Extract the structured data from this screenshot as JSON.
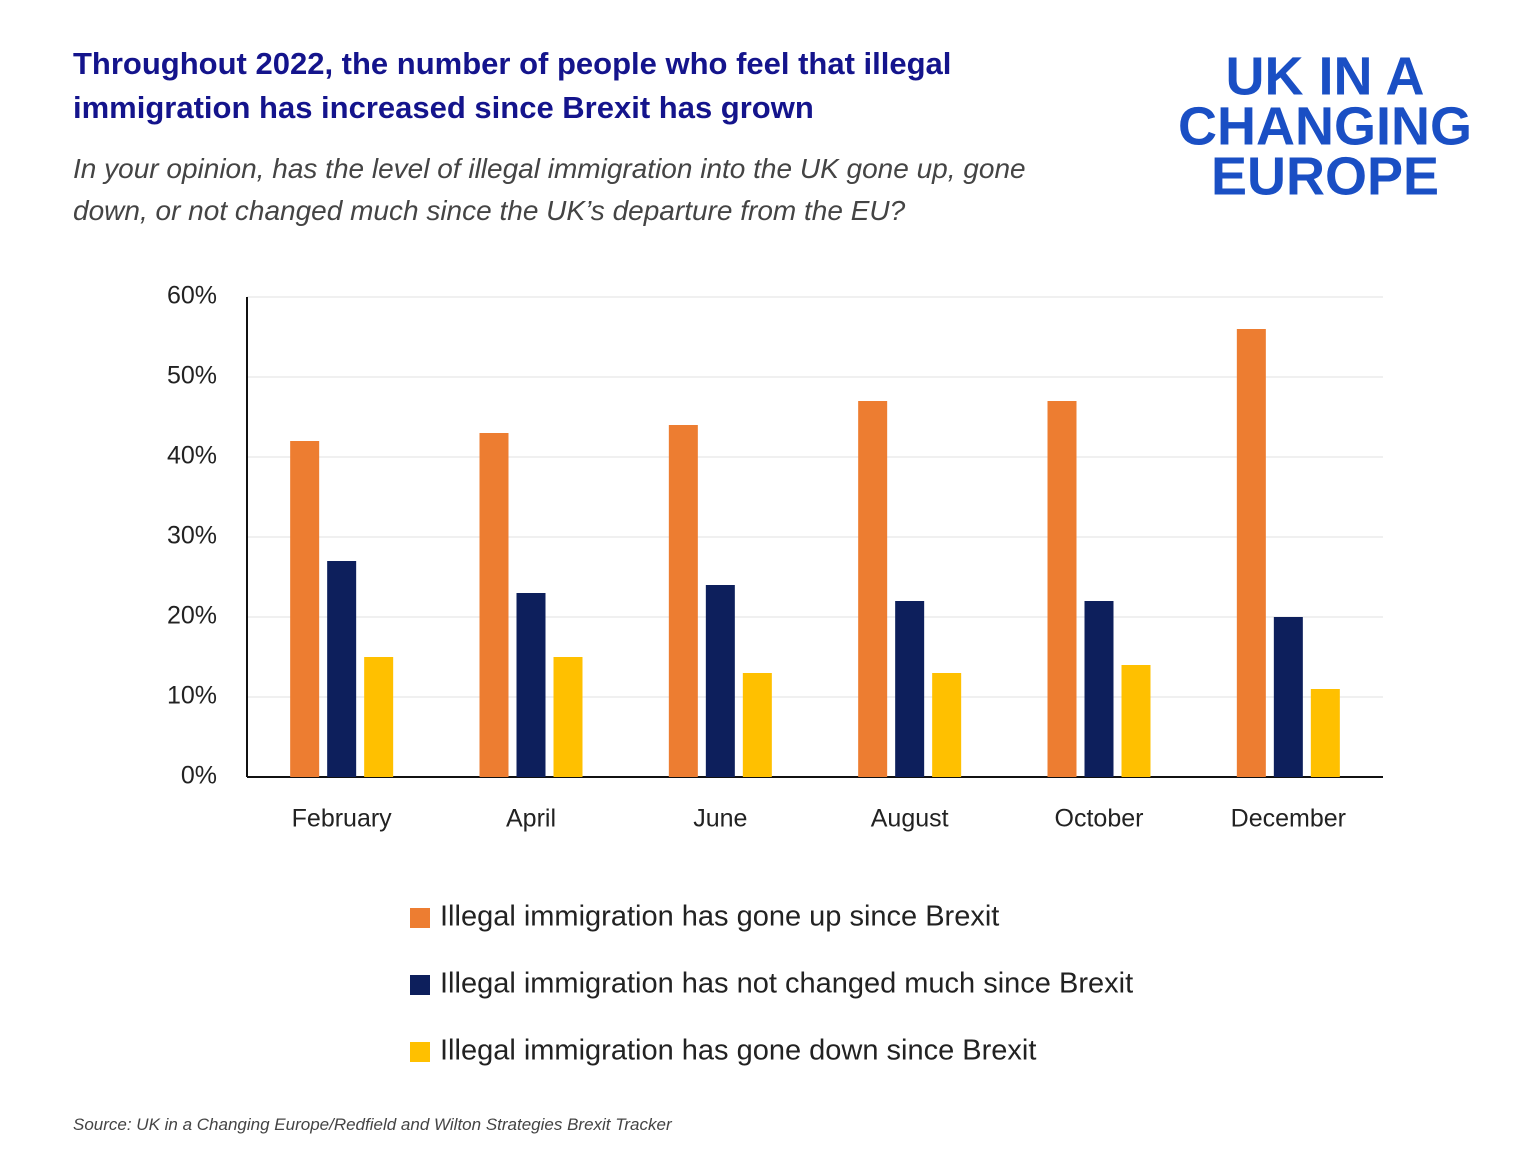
{
  "chart_data": {
    "type": "bar",
    "title": "Throughout 2022, the number of people who feel that illegal immigration has increased since Brexit has grown",
    "subtitle": "In your opinion, has the level of illegal immigration into the UK gone up, gone down, or not changed much since the UK’s departure from the EU?",
    "logo": [
      "UK IN A",
      "CHANGING",
      "EUROPE"
    ],
    "source": "Source:  UK in  a Changing Europe/Redfield and Wilton Strategies Brexit Tracker",
    "categories": [
      "February",
      "April",
      "June",
      "August",
      "October",
      "December"
    ],
    "series": [
      {
        "name": "Illegal immigration has gone up since Brexit",
        "color": "#ed7d31",
        "values": [
          42,
          43,
          44,
          47,
          47,
          56
        ]
      },
      {
        "name": "Illegal immigration has not changed much since Brexit",
        "color": "#0d1f5c",
        "values": [
          27,
          23,
          24,
          22,
          22,
          20
        ]
      },
      {
        "name": "Illegal immigration has gone down since Brexit",
        "color": "#ffc000",
        "values": [
          15,
          15,
          13,
          13,
          14,
          11
        ]
      }
    ],
    "ylim": [
      0,
      60
    ],
    "yticks": [
      {
        "value": 0,
        "label": "0%"
      },
      {
        "value": 10,
        "label": "10%"
      },
      {
        "value": 20,
        "label": "20%"
      },
      {
        "value": 30,
        "label": "30%"
      },
      {
        "value": 40,
        "label": "40%"
      },
      {
        "value": 50,
        "label": "50%"
      },
      {
        "value": 60,
        "label": "60%"
      }
    ],
    "grid": true
  }
}
